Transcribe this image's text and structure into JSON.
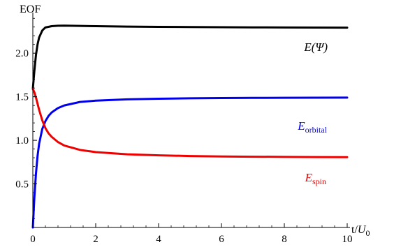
{
  "chart_data": {
    "type": "line",
    "title": "",
    "ylabel": "EOF",
    "xlabel_main": "t/",
    "xlabel_var": "U",
    "xlabel_sub": "0",
    "xlim": [
      0,
      10
    ],
    "ylim": [
      0,
      2.45
    ],
    "x_ticks": [
      "0",
      "2",
      "4",
      "6",
      "8",
      "10"
    ],
    "y_ticks": [
      "0.5",
      "1.0",
      "1.5",
      "2.0"
    ],
    "series": [
      {
        "label_main": "E(Ψ)",
        "label_sub": "",
        "color": "#000000",
        "points": [
          [
            0,
            1.59
          ],
          [
            0.05,
            1.8
          ],
          [
            0.1,
            1.98
          ],
          [
            0.15,
            2.1
          ],
          [
            0.2,
            2.18
          ],
          [
            0.3,
            2.26
          ],
          [
            0.4,
            2.295
          ],
          [
            0.6,
            2.31
          ],
          [
            0.8,
            2.315
          ],
          [
            1,
            2.316
          ],
          [
            1.5,
            2.313
          ],
          [
            2,
            2.31
          ],
          [
            3,
            2.305
          ],
          [
            4,
            2.302
          ],
          [
            5,
            2.3
          ],
          [
            6,
            2.298
          ],
          [
            7,
            2.296
          ],
          [
            8,
            2.295
          ],
          [
            9,
            2.294
          ],
          [
            10,
            2.293
          ]
        ]
      },
      {
        "label_main": "E",
        "label_sub": "orbital",
        "color": "#0000ee",
        "points": [
          [
            0,
            0.0
          ],
          [
            0.05,
            0.35
          ],
          [
            0.1,
            0.62
          ],
          [
            0.15,
            0.82
          ],
          [
            0.2,
            0.96
          ],
          [
            0.3,
            1.13
          ],
          [
            0.4,
            1.22
          ],
          [
            0.5,
            1.28
          ],
          [
            0.6,
            1.32
          ],
          [
            0.8,
            1.37
          ],
          [
            1,
            1.4
          ],
          [
            1.5,
            1.44
          ],
          [
            2,
            1.455
          ],
          [
            3,
            1.47
          ],
          [
            4,
            1.477
          ],
          [
            5,
            1.482
          ],
          [
            6,
            1.485
          ],
          [
            7,
            1.487
          ],
          [
            8,
            1.488
          ],
          [
            9,
            1.489
          ],
          [
            10,
            1.49
          ]
        ]
      },
      {
        "label_main": "E",
        "label_sub": "spin",
        "color": "#ee0000",
        "points": [
          [
            0,
            1.59
          ],
          [
            0.05,
            1.55
          ],
          [
            0.1,
            1.49
          ],
          [
            0.15,
            1.42
          ],
          [
            0.2,
            1.35
          ],
          [
            0.3,
            1.23
          ],
          [
            0.4,
            1.14
          ],
          [
            0.5,
            1.08
          ],
          [
            0.6,
            1.04
          ],
          [
            0.8,
            0.98
          ],
          [
            1,
            0.94
          ],
          [
            1.5,
            0.89
          ],
          [
            2,
            0.865
          ],
          [
            3,
            0.84
          ],
          [
            4,
            0.828
          ],
          [
            5,
            0.82
          ],
          [
            6,
            0.815
          ],
          [
            7,
            0.812
          ],
          [
            8,
            0.81
          ],
          [
            9,
            0.808
          ],
          [
            10,
            0.807
          ]
        ]
      }
    ]
  }
}
